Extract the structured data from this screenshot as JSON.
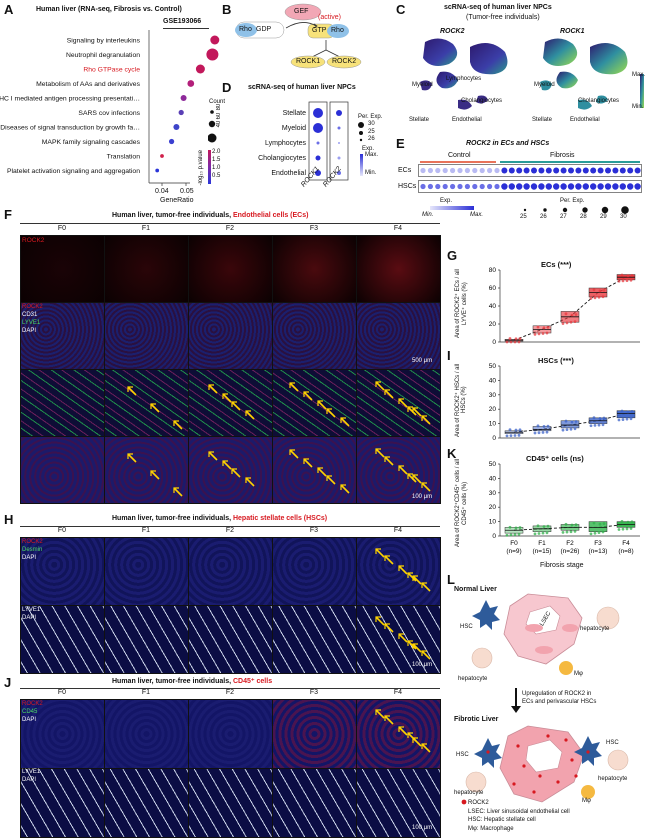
{
  "panels": {
    "A": "A",
    "B": "B",
    "C": "C",
    "D": "D",
    "E": "E",
    "F": "F",
    "G": "G",
    "H": "H",
    "I": "I",
    "J": "J",
    "K": "K",
    "L": "L"
  },
  "panelA": {
    "title": "Human liver (RNA-seq, Fibrosis vs. Control)",
    "dataset": "GSE193066",
    "terms": [
      {
        "label": "Signaling by interleukins",
        "x": 0.062,
        "count": 60,
        "highlight": false,
        "color": "#c2185b"
      },
      {
        "label": "Neutrophil degranulation",
        "x": 0.061,
        "count": 80,
        "highlight": false,
        "color": "#c2185b"
      },
      {
        "label": "Rho GTPase cycle",
        "x": 0.056,
        "count": 60,
        "highlight": true,
        "color": "#c2185b"
      },
      {
        "label": "Metabolism of AAs and derivatives",
        "x": 0.052,
        "count": 45,
        "highlight": false,
        "color": "#b31f7a"
      },
      {
        "label": "MHC I mediated antigen processing presentation",
        "x": 0.049,
        "count": 40,
        "highlight": false,
        "color": "#8e2a9a"
      },
      {
        "label": "SARS cov infections",
        "x": 0.048,
        "count": 35,
        "highlight": false,
        "color": "#5a3fb5"
      },
      {
        "label": "Diseases of signal transduction by growth factor receptors and second messengers",
        "x": 0.046,
        "count": 40,
        "highlight": false,
        "color": "#3e44c9"
      },
      {
        "label": "MAPK family signaling cascades",
        "x": 0.044,
        "count": 35,
        "highlight": false,
        "color": "#3a3fd0"
      },
      {
        "label": "Translation",
        "x": 0.04,
        "count": 25,
        "highlight": false,
        "color": "#d0204a"
      },
      {
        "label": "Platelet activation signaling and aggregation",
        "x": 0.038,
        "count": 25,
        "highlight": false,
        "color": "#2b35d8"
      }
    ],
    "xticks": [
      "0.04",
      "0.05"
    ],
    "xlabel": "GeneRatio",
    "legend": {
      "count_title": "Count",
      "counts": [
        "40",
        "60",
        "80"
      ],
      "p_title": "-log₁₀ p.value",
      "p_values": [
        "2.0",
        "1.5",
        "1.0",
        "0.5"
      ]
    }
  },
  "panelB": {
    "gef": "GEF",
    "active": "(active)",
    "rho_gdp_1": "Rho",
    "rho_gdp_2": "GDP",
    "gtp": "GTP",
    "rho": "Rho",
    "rock1": "ROCK1",
    "rock2": "ROCK2"
  },
  "panelC": {
    "title": "scRNA-seq of human liver NPCs",
    "subtitle": "(Tumor-free individuals)",
    "left": "ROCK2",
    "right": "ROCK1",
    "labels": {
      "lymphocytes": "Lymphocytes",
      "myeloid": "Myeloid",
      "cholangiocytes": "Cholangiocytes",
      "stellate": "Stellate",
      "endothelial": "Endothelial",
      "myeloid2": "Myeloid",
      "cholangiocytes2": "Cholangiocytes",
      "stellate2": "Stellate",
      "endothelial2": "Endothelial"
    },
    "scale_max": "Max.",
    "scale_min": "Min."
  },
  "panelD": {
    "title": "scRNA-seq of human liver NPCs",
    "rows": [
      "Stellate",
      "Myeloid",
      "Lymphocytes",
      "Cholangiocytes",
      "Endothelial"
    ],
    "cols": [
      "ROCK1",
      "ROCK2"
    ],
    "legend_title": "Per. Exp.",
    "legend_values": [
      "30",
      "25",
      "26"
    ],
    "exp_title": "Exp.",
    "exp_max": "Max.",
    "exp_min": "Min."
  },
  "panelE": {
    "title": "ROCK2 in ECs and HSCs",
    "control": "Control",
    "fibrosis": "Fibrosis",
    "rows": [
      "ECs",
      "HSCs"
    ],
    "exp_title": "Exp.",
    "min": "Min.",
    "max": "Max.",
    "per_title": "Per. Exp.",
    "per_values": [
      "25",
      "26",
      "27",
      "28",
      "29",
      "30"
    ]
  },
  "panelF": {
    "title_prefix": "Human liver, tumor-free individuals, ",
    "title_red": "Endothelial cells (ECs)",
    "stages": [
      "F0",
      "F1",
      "F2",
      "F3",
      "F4"
    ],
    "row1": "ROCK2",
    "row2_l1": "ROCK2",
    "row2_l2": "CD31",
    "row2_l3": "LYVE1",
    "row2_l4": "DAPI",
    "scale1": "500 μm",
    "scale2": "100 μm"
  },
  "panelH": {
    "title_prefix": "Human liver, tumor-free individuals, ",
    "title_red": "Hepatic stellate cells (HSCs)",
    "stages": [
      "F0",
      "F1",
      "F2",
      "F3",
      "F4"
    ],
    "row1_l1": "ROCK2",
    "row1_l2": "Desmin",
    "row1_l3": "DAPI",
    "row2_l1": "LYVE1",
    "row2_l2": "DAPI",
    "scale": "100 μm"
  },
  "panelJ": {
    "title_prefix": "Human liver, tumor-free individuals, ",
    "title_red": "CD45⁺ cells",
    "stages": [
      "F0",
      "F1",
      "F2",
      "F3",
      "F4"
    ],
    "row1_l1": "ROCK2",
    "row1_l2": "CD45",
    "row1_l3": "DAPI",
    "row2_l1": "LYVE1",
    "row2_l2": "DAPI",
    "scale": "100 μm"
  },
  "chart_data": [
    {
      "type": "box",
      "title": "ECs (***)",
      "ylabel": "Area of ROCK2⁺ ECs / all LYVE⁺ cells (%)",
      "categories": [
        "F0",
        "F1",
        "F2",
        "F3",
        "F4"
      ],
      "medians": [
        2,
        14,
        28,
        55,
        72
      ],
      "q1": [
        1,
        10,
        22,
        50,
        69
      ],
      "q3": [
        3,
        18,
        34,
        60,
        75
      ],
      "ylim": [
        0,
        80
      ],
      "yticks": [
        0,
        20,
        40,
        60,
        80
      ],
      "color": "#e8383d"
    },
    {
      "type": "box",
      "title": "HSCs (***)",
      "ylabel": "Area of ROCK2⁺ HSCs / all HSCs (%)",
      "categories": [
        "F0",
        "F1",
        "F2",
        "F3",
        "F4"
      ],
      "medians": [
        4,
        6,
        9,
        12,
        17
      ],
      "q1": [
        3,
        5,
        7,
        10,
        14
      ],
      "q3": [
        5,
        8,
        12,
        14,
        19
      ],
      "ylim": [
        0,
        50
      ],
      "yticks": [
        0,
        10,
        20,
        30,
        40,
        50
      ],
      "color": "#3b62c8"
    },
    {
      "type": "box",
      "title": "CD45⁺ cells (ns)",
      "ylabel": "Area of ROCK2⁺CD45⁺ cells / all CD45⁺ cells (%)",
      "categories": [
        "F0",
        "F1",
        "F2",
        "F3",
        "F4"
      ],
      "ns": [
        "(n=9)",
        "(n=15)",
        "(n=26)",
        "(n=13)",
        "(n=8)"
      ],
      "medians": [
        4,
        5,
        6,
        6,
        8
      ],
      "q1": [
        2,
        3,
        4,
        3,
        6
      ],
      "q3": [
        6,
        7,
        8,
        10,
        10
      ],
      "ylim": [
        0,
        50
      ],
      "yticks": [
        0,
        10,
        20,
        30,
        40,
        50
      ],
      "xlabel": "Fibrosis stage",
      "color": "#2fb24a"
    }
  ],
  "panelL": {
    "normal": "Normal Liver",
    "hsc": "HSC",
    "lsec": "LSEC",
    "hepatocyte": "hepatocyte",
    "mphi": "Mφ",
    "arrow_l1": "Upregulation of ROCK2 in",
    "arrow_l2": "ECs and  perivascular HSCs",
    "fibrotic": "Fibrotic Liver",
    "legend_rock2": "ROCK2",
    "legend_lsec": "LSEC: Liver sinusoidal endothelial cell",
    "legend_hsc": "HSC: Hepatic stellate cell",
    "legend_mphi": "Mφ: Macrophage"
  }
}
